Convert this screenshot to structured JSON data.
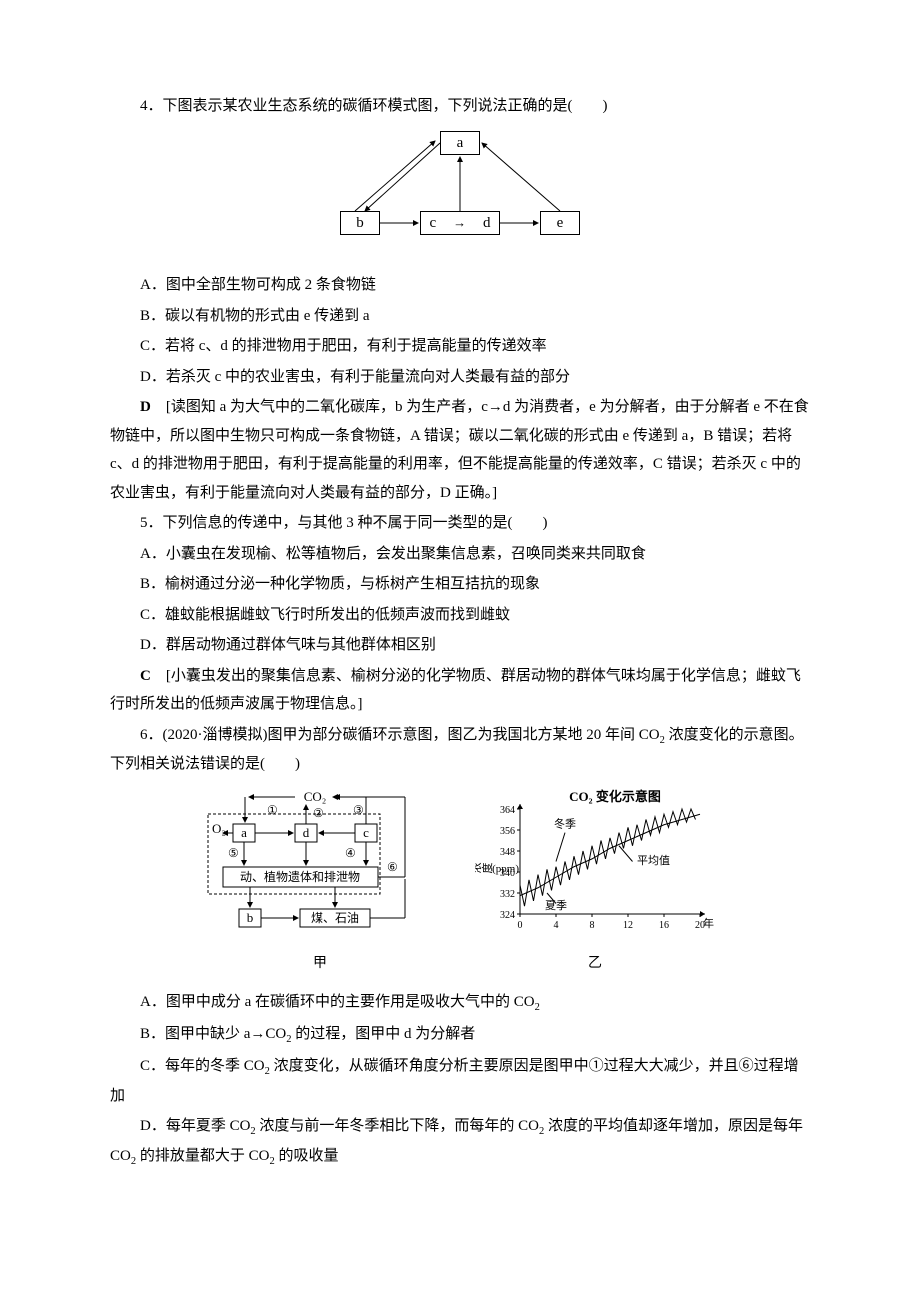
{
  "q4": {
    "stem": "4．下图表示某农业生态系统的碳循环模式图，下列说法正确的是(　　)",
    "diagram": {
      "nodes": {
        "a": "a",
        "b": "b",
        "c": "c",
        "d": "d",
        "e": "e"
      },
      "cd_arrow": "→",
      "edges": [
        "b→a",
        "a→b",
        "c/d→a",
        "e→a",
        "b→c/d",
        "c/d→e"
      ]
    },
    "options": {
      "A": "A．图中全部生物可构成 2 条食物链",
      "B": "B．碳以有机物的形式由 e 传递到 a",
      "C": "C．若将 c、d 的排泄物用于肥田，有利于提高能量的传递效率",
      "D": "D．若杀灭 c 中的农业害虫，有利于能量流向对人类最有益的部分"
    },
    "answer_letter": "D",
    "explanation": "　[读图知 a 为大气中的二氧化碳库，b 为生产者，c→d 为消费者，e 为分解者，由于分解者 e 不在食物链中，所以图中生物只可构成一条食物链，A 错误；碳以二氧化碳的形式由 e 传递到 a，B 错误；若将 c、d 的排泄物用于肥田，有利于提高能量的利用率，但不能提高能量的传递效率，C 错误；若杀灭 c 中的农业害虫，有利于能量流向对人类最有益的部分，D 正确。]"
  },
  "q5": {
    "stem": "5．下列信息的传递中，与其他 3 种不属于同一类型的是(　　)",
    "options": {
      "A": "A．小囊虫在发现榆、松等植物后，会发出聚集信息素，召唤同类来共同取食",
      "B": "B．榆树通过分泌一种化学物质，与栎树产生相互拮抗的现象",
      "C": "C．雄蚊能根据雌蚊飞行时所发出的低频声波而找到雌蚊",
      "D": "D．群居动物通过群体气味与其他群体相区别"
    },
    "answer_letter": "C",
    "explanation": "　[小囊虫发出的聚集信息素、榆树分泌的化学物质、群居动物的群体气味均属于化学信息；雌蚊飞行时所发出的低频声波属于物理信息。]"
  },
  "q6": {
    "stem_prefix": "6．(2020·淄博模拟)图甲为部分碳循环示意图，图乙为我国北方某地 20 年间 CO",
    "stem_sub1": "2",
    "stem_suffix": " 浓度变化的示意图。下列相关说法错误的是(　　)",
    "diagram_jia": {
      "top_label": "CO₂",
      "left_label": "O₂",
      "nodes": {
        "a": "a",
        "d": "d",
        "c": "c",
        "b": "b"
      },
      "bottom_box": "动、植物遗体和排泄物",
      "coal_box": "煤、石油",
      "circled": {
        "1": "①",
        "2": "②",
        "3": "③",
        "4": "④",
        "5": "⑤",
        "6": "⑥"
      },
      "caption": "甲"
    },
    "diagram_yi": {
      "title": "CO₂ 变化示意图",
      "ylabel": "CO₂浓度(ppm)",
      "xlabel": "年",
      "yticks": [
        324,
        332,
        340,
        348,
        356,
        364
      ],
      "xticks": [
        0,
        4,
        8,
        12,
        16,
        20
      ],
      "ylim": [
        324,
        364
      ],
      "xlim": [
        0,
        20
      ],
      "series": {
        "winter": {
          "label": "冬季",
          "color": "#000000",
          "points": [
            [
              0,
              335
            ],
            [
              1,
              337
            ],
            [
              2,
              339
            ],
            [
              3,
              341
            ],
            [
              4,
              342
            ],
            [
              5,
              344
            ],
            [
              6,
              346
            ],
            [
              7,
              348
            ],
            [
              8,
              350
            ],
            [
              9,
              352
            ],
            [
              10,
              353
            ],
            [
              11,
              355
            ],
            [
              12,
              357
            ],
            [
              13,
              358
            ],
            [
              14,
              360
            ],
            [
              15,
              361
            ],
            [
              16,
              362
            ],
            [
              17,
              363
            ],
            [
              18,
              364
            ],
            [
              19,
              364
            ]
          ]
        },
        "avg": {
          "label": "平均值",
          "color": "#000000",
          "points": [
            [
              0,
              331
            ],
            [
              2,
              334
            ],
            [
              4,
              338
            ],
            [
              6,
              342
            ],
            [
              8,
              345
            ],
            [
              10,
              349
            ],
            [
              12,
              352
            ],
            [
              14,
              355
            ],
            [
              16,
              358
            ],
            [
              18,
              360
            ],
            [
              20,
              362
            ]
          ]
        },
        "summer": {
          "label": "夏季",
          "color": "#000000",
          "points": [
            [
              0.5,
              327
            ],
            [
              1.5,
              329
            ],
            [
              2.5,
              331
            ],
            [
              3.5,
              333
            ],
            [
              4.5,
              335
            ],
            [
              5.5,
              337
            ],
            [
              6.5,
              339
            ],
            [
              7.5,
              341
            ],
            [
              8.5,
              343
            ],
            [
              9.5,
              345
            ],
            [
              10.5,
              347
            ],
            [
              11.5,
              349
            ],
            [
              12.5,
              350
            ],
            [
              13.5,
              352
            ],
            [
              14.5,
              354
            ],
            [
              15.5,
              355
            ],
            [
              16.5,
              357
            ],
            [
              17.5,
              358
            ],
            [
              18.5,
              359
            ],
            [
              19.5,
              360
            ]
          ]
        }
      },
      "caption": "乙"
    },
    "options": {
      "A_pre": "A．图甲中成分 a 在碳循环中的主要作用是吸收大气中的 CO",
      "A_sub": "2",
      "B_pre": "B．图甲中缺少 a→CO",
      "B_sub": "2",
      "B_post": " 的过程，图甲中 d 为分解者",
      "C_pre": "C．每年的冬季 CO",
      "C_sub": "2",
      "C_post": " 浓度变化，从碳循环角度分析主要原因是图甲中①过程大大减少，并且⑥过程增加",
      "D_pre": "D．每年夏季 CO",
      "D_sub": "2",
      "D_mid": " 浓度与前一年冬季相比下降，而每年的 CO",
      "D_sub2": "2",
      "D_mid2": " 浓度的平均值却逐年增加，原因是每年 CO",
      "D_sub3": "2",
      "D_mid3": " 的排放量都大于 CO",
      "D_sub4": "2",
      "D_post": " 的吸收量"
    }
  },
  "colors": {
    "text": "#000000",
    "background": "#ffffff",
    "border": "#000000"
  }
}
